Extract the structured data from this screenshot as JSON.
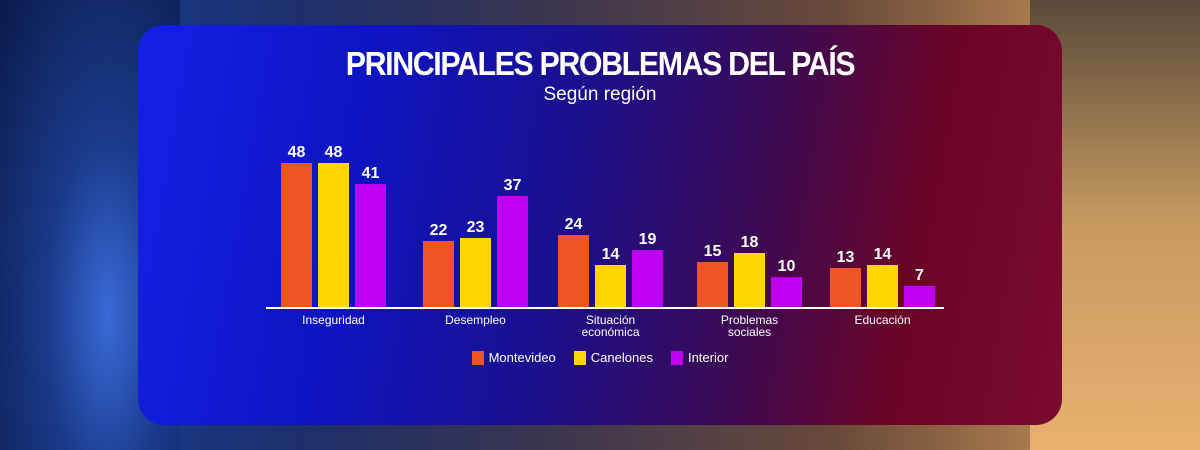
{
  "chart_data": {
    "type": "bar",
    "title": "PRINCIPALES PROBLEMAS DEL PAÍS",
    "subtitle": "Según región",
    "categories": [
      [
        "Inseguridad"
      ],
      [
        "Desempleo"
      ],
      [
        "Situación",
        "económica"
      ],
      [
        "Problemas",
        "sociales"
      ],
      [
        "Educación"
      ]
    ],
    "series": [
      {
        "name": "Montevideo",
        "color": "#f05423",
        "values": [
          48,
          22,
          24,
          15,
          13
        ]
      },
      {
        "name": "Canelones",
        "color": "#ffd600",
        "values": [
          48,
          23,
          14,
          18,
          14
        ]
      },
      {
        "name": "Interior",
        "color": "#c000f0",
        "values": [
          41,
          37,
          19,
          10,
          7
        ]
      }
    ],
    "ylim": [
      0,
      48
    ],
    "legend": "bottom",
    "grid": false
  }
}
